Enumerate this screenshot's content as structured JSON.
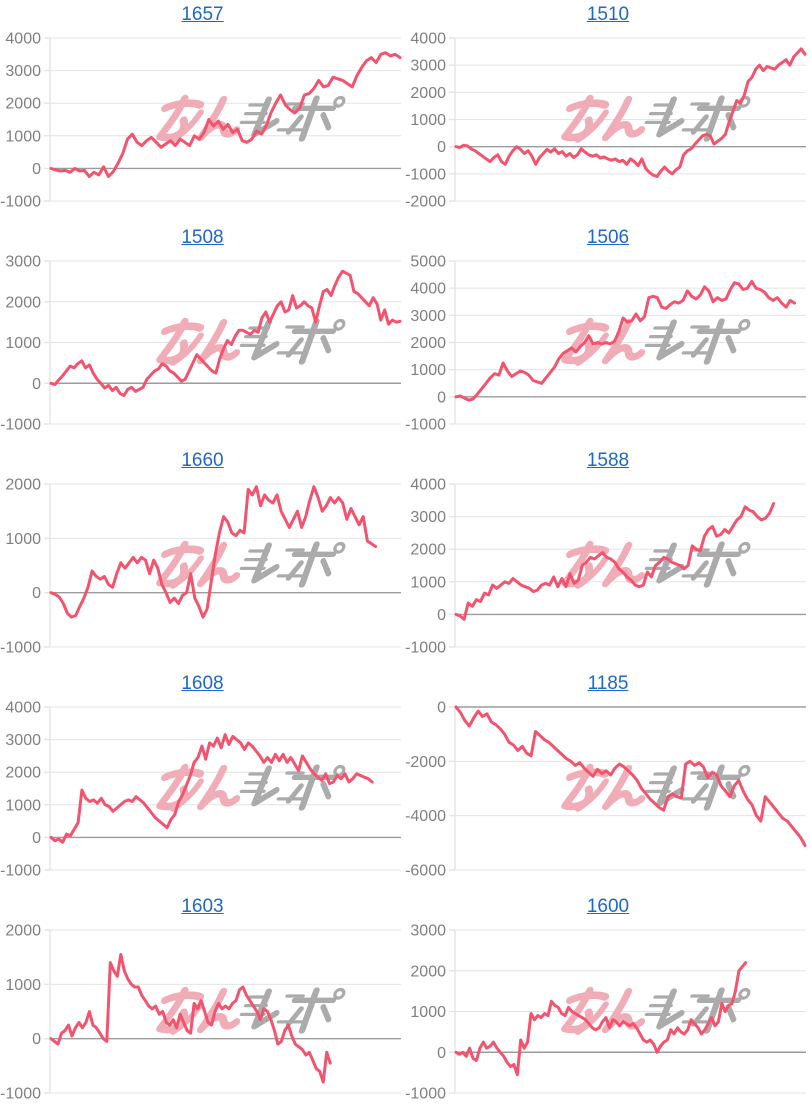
{
  "page": {
    "background": "#ffffff"
  },
  "watermark": {
    "pink_text": "みん",
    "gray_text": "レポ",
    "pink_color": "#f0adb8",
    "gray_color": "#ababab"
  },
  "chart_style": {
    "line_color": "#f4536e",
    "grid_color": "#e4e4e4",
    "zero_line_color": "#9b9b9b",
    "axis_line_color": "#d8d8d8",
    "tick_label_color": "#808080",
    "title_color": "#1e68c8",
    "legend": "none",
    "grid": "horizontal-only"
  },
  "chart_data": [
    {
      "type": "line",
      "title": "1657",
      "xlabel": "",
      "ylabel": "",
      "ylim": [
        -1000,
        4000
      ],
      "yticks": [
        4000,
        3000,
        2000,
        1000,
        0,
        -1000
      ],
      "x_span": 1.0,
      "values": [
        0,
        -50,
        -80,
        -60,
        -120,
        0,
        -80,
        -60,
        -250,
        -120,
        -200,
        50,
        -250,
        -100,
        150,
        450,
        900,
        1050,
        800,
        700,
        850,
        950,
        800,
        650,
        750,
        850,
        700,
        900,
        800,
        700,
        1000,
        900,
        1100,
        1500,
        1300,
        1450,
        1200,
        1350,
        1100,
        1200,
        850,
        800,
        900,
        1150,
        1050,
        1300,
        1700,
        2000,
        2250,
        1950,
        1800,
        1700,
        1850,
        2250,
        2300,
        2450,
        2700,
        2500,
        2550,
        2800,
        2750,
        2700,
        2600,
        2500,
        2850,
        3100,
        3300,
        3400,
        3250,
        3500,
        3550,
        3450,
        3500,
        3400
      ]
    },
    {
      "type": "line",
      "title": "1510",
      "xlabel": "",
      "ylabel": "",
      "ylim": [
        -2000,
        4000
      ],
      "yticks": [
        4000,
        3000,
        2000,
        1000,
        0,
        -1000,
        -2000
      ],
      "x_span": 1.0,
      "values": [
        0,
        -30,
        50,
        30,
        -80,
        -150,
        -250,
        -350,
        -450,
        -550,
        -400,
        -300,
        -550,
        -650,
        -350,
        -150,
        0,
        -100,
        -250,
        -150,
        -350,
        -650,
        -400,
        -250,
        -100,
        -200,
        -80,
        -250,
        -180,
        -350,
        -250,
        -400,
        -300,
        -80,
        -200,
        -300,
        -350,
        -300,
        -420,
        -380,
        -450,
        -500,
        -450,
        -550,
        -500,
        -650,
        -450,
        -550,
        -700,
        -450,
        -800,
        -950,
        -1050,
        -1100,
        -900,
        -750,
        -900,
        -1000,
        -850,
        -750,
        -300,
        -150,
        -80,
        100,
        250,
        400,
        450,
        400,
        100,
        200,
        300,
        450,
        900,
        1300,
        1700,
        1600,
        1900,
        2400,
        2550,
        2850,
        3000,
        2800,
        2950,
        2900,
        2850,
        3000,
        3100,
        3200,
        3000,
        3300,
        3450,
        3600,
        3400
      ]
    },
    {
      "type": "line",
      "title": "1508",
      "xlabel": "",
      "ylabel": "",
      "ylim": [
        -1000,
        3000
      ],
      "yticks": [
        3000,
        2000,
        1000,
        0,
        -1000
      ],
      "x_span": 1.0,
      "values": [
        0,
        -30,
        80,
        180,
        300,
        420,
        380,
        480,
        550,
        380,
        450,
        250,
        100,
        0,
        -120,
        -50,
        -180,
        -100,
        -250,
        -300,
        -150,
        -100,
        -200,
        -150,
        -100,
        100,
        200,
        300,
        350,
        480,
        420,
        300,
        250,
        150,
        50,
        100,
        300,
        500,
        700,
        600,
        500,
        400,
        300,
        250,
        600,
        850,
        1050,
        950,
        1150,
        1300,
        1300,
        1250,
        1200,
        1300,
        1250,
        1600,
        1750,
        1500,
        1700,
        1900,
        2000,
        1750,
        1800,
        2150,
        1850,
        1900,
        2000,
        1900,
        1850,
        1500,
        1900,
        2250,
        2300,
        2150,
        2400,
        2600,
        2750,
        2700,
        2650,
        2250,
        2200,
        2100,
        2000,
        1900,
        2100,
        1950,
        1550,
        1800,
        1450,
        1550,
        1500,
        1520
      ]
    },
    {
      "type": "line",
      "title": "1506",
      "xlabel": "",
      "ylabel": "",
      "ylim": [
        -1000,
        5000
      ],
      "yticks": [
        5000,
        4000,
        3000,
        2000,
        1000,
        0,
        -1000
      ],
      "x_span": 0.97,
      "values": [
        0,
        30,
        -50,
        -120,
        -80,
        100,
        300,
        500,
        700,
        850,
        800,
        1250,
        950,
        750,
        850,
        950,
        900,
        800,
        600,
        550,
        500,
        700,
        900,
        1100,
        1400,
        1600,
        1700,
        1800,
        1650,
        1850,
        2000,
        2250,
        1950,
        2000,
        1950,
        2000,
        1950,
        2050,
        2400,
        2900,
        2750,
        2800,
        3050,
        2800,
        2950,
        3650,
        3700,
        3650,
        3300,
        3250,
        3400,
        3500,
        3450,
        3550,
        3900,
        3700,
        3600,
        3750,
        4050,
        3900,
        3500,
        3650,
        3550,
        3600,
        3950,
        4200,
        4150,
        3950,
        4000,
        4250,
        4000,
        3950,
        3850,
        3650,
        3550,
        3650,
        3450,
        3300,
        3550,
        3450
      ]
    },
    {
      "type": "line",
      "title": "1660",
      "xlabel": "",
      "ylabel": "",
      "ylim": [
        -1000,
        2000
      ],
      "yticks": [
        2000,
        1000,
        0,
        -1000
      ],
      "x_span": 0.93,
      "values": [
        0,
        -30,
        -80,
        -200,
        -380,
        -450,
        -420,
        -250,
        -100,
        100,
        400,
        300,
        250,
        300,
        150,
        100,
        350,
        550,
        450,
        550,
        650,
        550,
        650,
        600,
        350,
        600,
        450,
        150,
        0,
        -180,
        -100,
        -200,
        -50,
        0,
        350,
        -100,
        -250,
        -450,
        -300,
        200,
        700,
        1100,
        1400,
        1300,
        1100,
        1050,
        1150,
        1100,
        1900,
        1800,
        1950,
        1600,
        1800,
        1700,
        1650,
        1800,
        1500,
        1350,
        1200,
        1350,
        1500,
        1200,
        1400,
        1700,
        1950,
        1750,
        1500,
        1600,
        1750,
        1650,
        1750,
        1650,
        1350,
        1550,
        1400,
        1250,
        1400,
        950,
        900,
        850
      ]
    },
    {
      "type": "line",
      "title": "1588",
      "xlabel": "",
      "ylabel": "",
      "ylim": [
        -1000,
        4000
      ],
      "yticks": [
        4000,
        3000,
        2000,
        1000,
        0,
        -1000
      ],
      "x_span": 0.91,
      "values": [
        0,
        -50,
        -150,
        350,
        250,
        450,
        400,
        650,
        600,
        900,
        800,
        900,
        1000,
        950,
        1100,
        1000,
        900,
        850,
        800,
        700,
        750,
        900,
        950,
        900,
        1150,
        850,
        1100,
        850,
        1250,
        950,
        1050,
        1500,
        1600,
        1750,
        1700,
        1800,
        1900,
        1750,
        1700,
        1600,
        1400,
        1300,
        1150,
        1050,
        900,
        850,
        900,
        1300,
        1150,
        1500,
        1600,
        1750,
        1700,
        1600,
        1550,
        1500,
        1400,
        1500,
        2100,
        2000,
        1950,
        2400,
        2600,
        2700,
        2400,
        2450,
        2600,
        2500,
        2700,
        2900,
        3000,
        3300,
        3200,
        3150,
        3000,
        2900,
        2950,
        3100,
        3400
      ]
    },
    {
      "type": "line",
      "title": "1608",
      "xlabel": "",
      "ylabel": "",
      "ylim": [
        -1000,
        4000
      ],
      "yticks": [
        4000,
        3000,
        2000,
        1000,
        0,
        -1000
      ],
      "x_span": 0.92,
      "values": [
        0,
        -100,
        -50,
        -150,
        100,
        50,
        250,
        450,
        1450,
        1200,
        1100,
        1150,
        1050,
        1200,
        1000,
        950,
        800,
        900,
        1000,
        1100,
        1150,
        1100,
        1250,
        1150,
        1050,
        900,
        750,
        600,
        500,
        400,
        300,
        550,
        700,
        1100,
        1300,
        1600,
        1900,
        2300,
        2450,
        2800,
        2400,
        2900,
        2800,
        3050,
        2750,
        3150,
        2850,
        3100,
        3000,
        2900,
        2700,
        2900,
        2800,
        2650,
        2500,
        2300,
        2450,
        2300,
        2550,
        2350,
        2550,
        2300,
        2450,
        2250,
        2050,
        2500,
        2300,
        2100,
        1950,
        1850,
        1750,
        1950,
        1650,
        1700,
        1900,
        1800,
        1950,
        1700,
        1800,
        1950,
        1900,
        1850,
        1800,
        1700
      ]
    },
    {
      "type": "line",
      "title": "1185",
      "xlabel": "",
      "ylabel": "",
      "ylim": [
        -6000,
        0
      ],
      "yticks": [
        0,
        -2000,
        -4000,
        -6000
      ],
      "x_span": 1.0,
      "values": [
        0,
        -200,
        -500,
        -700,
        -400,
        -150,
        -350,
        -250,
        -550,
        -650,
        -800,
        -1000,
        -1300,
        -1400,
        -1600,
        -1450,
        -1700,
        -1800,
        -900,
        -1050,
        -1200,
        -1300,
        -1450,
        -1600,
        -1750,
        -1900,
        -2000,
        -2150,
        -2050,
        -2250,
        -2400,
        -2550,
        -2300,
        -2450,
        -2350,
        -2500,
        -2250,
        -2100,
        -2200,
        -2350,
        -2500,
        -2700,
        -3000,
        -3200,
        -3400,
        -3550,
        -3700,
        -3800,
        -3300,
        -3200,
        -3300,
        -3350,
        -2100,
        -2000,
        -2150,
        -2050,
        -2200,
        -2600,
        -2400,
        -2500,
        -2900,
        -3100,
        -3300,
        -2900,
        -2700,
        -3100,
        -3400,
        -3600,
        -4000,
        -4200,
        -3300,
        -3500,
        -3700,
        -3900,
        -4100,
        -4200,
        -4400,
        -4600,
        -4800,
        -5100
      ]
    },
    {
      "type": "line",
      "title": "1603",
      "xlabel": "",
      "ylabel": "",
      "ylim": [
        -1000,
        2000
      ],
      "yticks": [
        2000,
        1000,
        0,
        -1000
      ],
      "x_span": 0.8,
      "values": [
        0,
        -50,
        -100,
        100,
        150,
        250,
        50,
        200,
        300,
        200,
        300,
        500,
        250,
        200,
        100,
        0,
        -50,
        1400,
        1250,
        1150,
        1550,
        1250,
        1100,
        1000,
        950,
        950,
        800,
        700,
        600,
        550,
        600,
        450,
        500,
        300,
        250,
        350,
        200,
        450,
        300,
        150,
        100,
        650,
        550,
        700,
        500,
        300,
        250,
        500,
        650,
        550,
        600,
        550,
        650,
        700,
        900,
        950,
        800,
        700,
        600,
        500,
        350,
        550,
        500,
        350,
        150,
        -100,
        -50,
        150,
        250,
        50,
        -100,
        -150,
        -200,
        -300,
        -250,
        -400,
        -550,
        -600,
        -800,
        -250,
        -450
      ]
    },
    {
      "type": "line",
      "title": "1600",
      "xlabel": "",
      "ylabel": "",
      "ylim": [
        -1000,
        3000
      ],
      "yticks": [
        3000,
        2000,
        1000,
        0,
        -1000
      ],
      "x_span": 0.83,
      "values": [
        0,
        -50,
        0,
        -100,
        100,
        -150,
        -200,
        100,
        250,
        100,
        150,
        250,
        100,
        0,
        -100,
        -250,
        -350,
        -300,
        -550,
        300,
        100,
        250,
        950,
        800,
        900,
        850,
        950,
        900,
        1250,
        1150,
        1100,
        950,
        900,
        1100,
        1000,
        950,
        900,
        850,
        800,
        700,
        600,
        550,
        600,
        750,
        850,
        600,
        800,
        750,
        650,
        750,
        700,
        650,
        700,
        600,
        450,
        300,
        250,
        300,
        200,
        0,
        150,
        250,
        300,
        550,
        450,
        600,
        500,
        450,
        550,
        800,
        700,
        600,
        450,
        550,
        700,
        850,
        650,
        750,
        1200,
        1000,
        1150,
        1200,
        1500,
        2000,
        2100,
        2200
      ]
    }
  ]
}
